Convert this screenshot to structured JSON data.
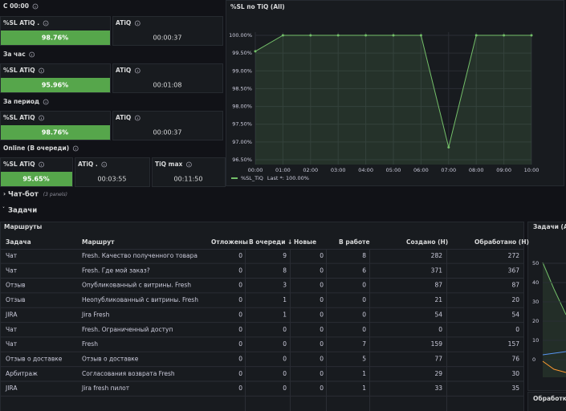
{
  "sections": [
    {
      "title": "С 00:00",
      "stats": [
        {
          "title": "%SL ATiQ .",
          "value": "98.76%"
        },
        {
          "title": "ATiQ",
          "value": "00:00:37"
        }
      ]
    },
    {
      "title": "За час",
      "stats": [
        {
          "title": "%SL ATiQ",
          "value": "95.96%"
        },
        {
          "title": "ATiQ",
          "value": "00:01:08"
        }
      ]
    },
    {
      "title": "За период",
      "stats": [
        {
          "title": "%SL ATiQ",
          "value": "98.76%"
        },
        {
          "title": "ATiQ",
          "value": "00:00:37"
        }
      ]
    },
    {
      "title": "Online (В очереди)",
      "stats": [
        {
          "title": "%SL ATiQ",
          "value": "95.65%"
        },
        {
          "title": "ATiQ .",
          "value": "00:03:55"
        },
        {
          "title": "TiQ max",
          "value": "00:11:50"
        }
      ]
    }
  ],
  "chart_data": {
    "type": "line",
    "title": "%SL по TiQ (All)",
    "categories": [
      "00:00",
      "01:00",
      "02:00",
      "03:00",
      "04:00",
      "05:00",
      "06:00",
      "07:00",
      "08:00",
      "09:00",
      "10:00"
    ],
    "series": [
      {
        "name": "%SL_TiQ",
        "color": "#73bf69",
        "values": [
          99.55,
          100,
          100,
          100,
          100,
          100,
          100,
          96.85,
          100,
          100,
          100
        ]
      }
    ],
    "legend_text": "Last *: 100.00%",
    "ylim": [
      96.5,
      100
    ],
    "yticks": [
      {
        "value": 100,
        "label": "100.00%"
      },
      {
        "value": 99.5,
        "label": "99.50%"
      },
      {
        "value": 99,
        "label": "99.00%"
      },
      {
        "value": 98.5,
        "label": "98.50%"
      },
      {
        "value": 98,
        "label": "98.00%"
      },
      {
        "value": 97.5,
        "label": "97.50%"
      },
      {
        "value": 97,
        "label": "97.00%"
      },
      {
        "value": 96.5,
        "label": "96.50%"
      }
    ],
    "grid": true
  },
  "rows": [
    {
      "title": "Чат-бот",
      "note": "(3 panels)"
    },
    {
      "title": "Задачи"
    }
  ],
  "table": {
    "title": "Маршруты",
    "columns": [
      "Задача",
      "Маршрут",
      "Отложены",
      "В очереди ↓",
      "Новые",
      "В работе",
      "Создано (Н)",
      "Обработано (Н)"
    ],
    "rows": [
      [
        "Чат",
        "Fresh. Качество полученного товара",
        0,
        9,
        0,
        8,
        282,
        272
      ],
      [
        "Чат",
        "Fresh. Где мой заказ?",
        0,
        8,
        0,
        6,
        371,
        367
      ],
      [
        "Отзыв",
        "Опубликованный с витрины. Fresh",
        0,
        3,
        0,
        0,
        87,
        87
      ],
      [
        "Отзыв",
        "Неопубликованный с витрины. Fresh",
        0,
        1,
        0,
        0,
        21,
        20
      ],
      [
        "JIRA",
        "Jira Fresh",
        0,
        1,
        0,
        0,
        54,
        54
      ],
      [
        "Чат",
        "Fresh. Ограниченный доступ",
        0,
        0,
        0,
        0,
        0,
        0
      ],
      [
        "Чат",
        "Fresh",
        0,
        0,
        0,
        7,
        159,
        157
      ],
      [
        "Отзыв о доставке",
        "Отзыв о доставке",
        0,
        0,
        0,
        5,
        77,
        76
      ],
      [
        "Арбитраж",
        "Согласования возврата Fresh",
        0,
        0,
        0,
        1,
        29,
        30
      ],
      [
        "JIRA",
        "Jira fresh пилот",
        0,
        0,
        0,
        1,
        33,
        35
      ]
    ]
  },
  "side_panel": {
    "title": "Задачи (All)",
    "yticks": [
      0,
      10,
      20,
      30,
      40,
      50
    ]
  },
  "bottom_panel": {
    "title": "Обработка"
  }
}
